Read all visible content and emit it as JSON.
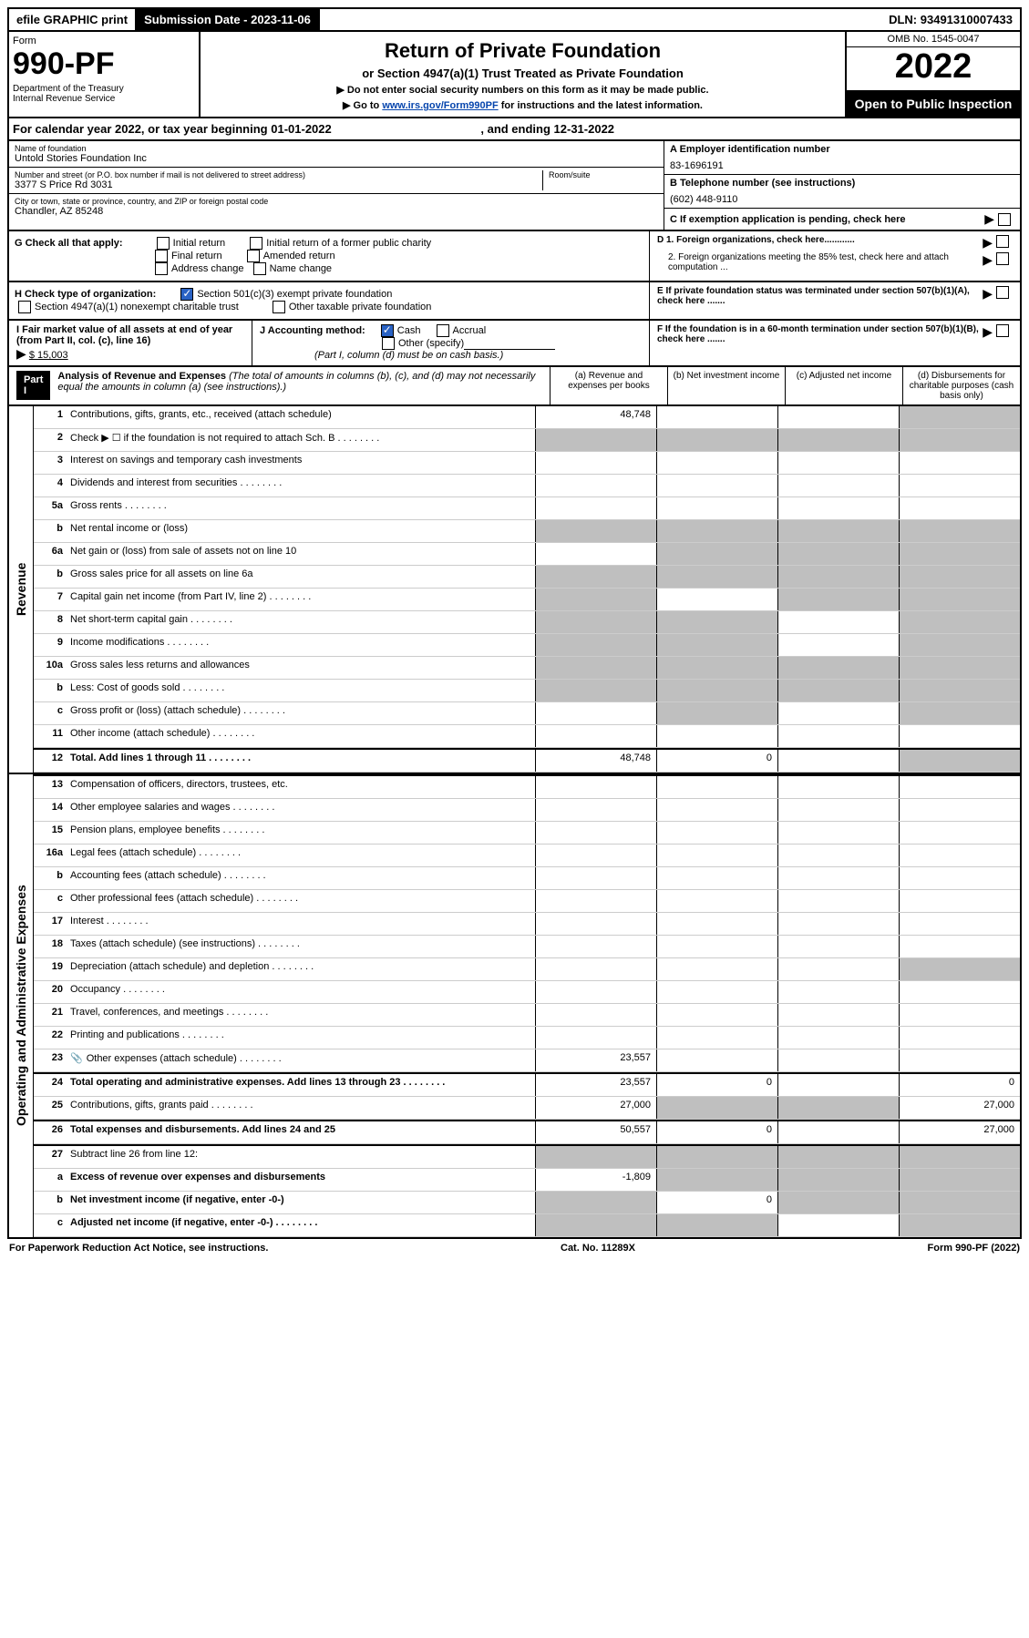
{
  "topbar": {
    "efile": "efile GRAPHIC print",
    "subdate_label": "Submission Date - ",
    "subdate": "2023-11-06",
    "dln_label": "DLN: ",
    "dln": "93491310007433"
  },
  "header": {
    "form_label": "Form",
    "form_num": "990-PF",
    "dept1": "Department of the Treasury",
    "dept2": "Internal Revenue Service",
    "title": "Return of Private Foundation",
    "subtitle": "or Section 4947(a)(1) Trust Treated as Private Foundation",
    "note1": "▶ Do not enter social security numbers on this form as it may be made public.",
    "note2_pre": "▶ Go to ",
    "note2_link": "www.irs.gov/Form990PF",
    "note2_post": " for instructions and the latest information.",
    "omb": "OMB No. 1545-0047",
    "year": "2022",
    "inspect": "Open to Public Inspection"
  },
  "calyear": {
    "text_pre": "For calendar year 2022, or tax year beginning ",
    "begin": "01-01-2022",
    "text_mid": ", and ending ",
    "end": "12-31-2022"
  },
  "info": {
    "name_label": "Name of foundation",
    "name": "Untold Stories Foundation Inc",
    "addr_label": "Number and street (or P.O. box number if mail is not delivered to street address)",
    "addr": "3377 S Price Rd 3031",
    "room_label": "Room/suite",
    "city_label": "City or town, state or province, country, and ZIP or foreign postal code",
    "city": "Chandler, AZ  85248",
    "ein_label": "A Employer identification number",
    "ein": "83-1696191",
    "phone_label": "B Telephone number (see instructions)",
    "phone": "(602) 448-9110",
    "c_label": "C If exemption application is pending, check here"
  },
  "boxG": {
    "label": "G Check all that apply:",
    "opts": [
      "Initial return",
      "Initial return of a former public charity",
      "Final return",
      "Amended return",
      "Address change",
      "Name change"
    ]
  },
  "boxH": {
    "label": "H Check type of organization:",
    "opt1": "Section 501(c)(3) exempt private foundation",
    "opt2": "Section 4947(a)(1) nonexempt charitable trust",
    "opt3": "Other taxable private foundation"
  },
  "boxI": {
    "label": "I Fair market value of all assets at end of year (from Part II, col. (c), line 16)",
    "arrow": "▶",
    "val": "$  15,003"
  },
  "boxJ": {
    "label": "J Accounting method:",
    "cash": "Cash",
    "accrual": "Accrual",
    "other": "Other (specify)",
    "note": "(Part I, column (d) must be on cash basis.)"
  },
  "rightD": {
    "d1": "D 1. Foreign organizations, check here............",
    "d2": "2. Foreign organizations meeting the 85% test, check here and attach computation ...",
    "e": "E  If private foundation status was terminated under section 507(b)(1)(A), check here .......",
    "f": "F  If the foundation is in a 60-month termination under section 507(b)(1)(B), check here ......."
  },
  "part1": {
    "label": "Part I",
    "title": "Analysis of Revenue and Expenses",
    "title_note": " (The total of amounts in columns (b), (c), and (d) may not necessarily equal the amounts in column (a) (see instructions).)",
    "cols": {
      "a": "(a) Revenue and expenses per books",
      "b": "(b) Net investment income",
      "c": "(c) Adjusted net income",
      "d": "(d) Disbursements for charitable purposes (cash basis only)"
    }
  },
  "vtabs": {
    "rev": "Revenue",
    "exp": "Operating and Administrative Expenses"
  },
  "rows": [
    {
      "n": "1",
      "d": "Contributions, gifts, grants, etc., received (attach schedule)",
      "a": "48,748",
      "grey": [
        "d"
      ]
    },
    {
      "n": "2",
      "d": "Check ▶ ☐ if the foundation is not required to attach Sch. B",
      "dots": true,
      "grey": [
        "a",
        "b",
        "c",
        "d"
      ]
    },
    {
      "n": "3",
      "d": "Interest on savings and temporary cash investments"
    },
    {
      "n": "4",
      "d": "Dividends and interest from securities",
      "dots": true
    },
    {
      "n": "5a",
      "d": "Gross rents",
      "dots": true
    },
    {
      "n": "b",
      "d": "Net rental income or (loss)",
      "grey": [
        "a",
        "b",
        "c",
        "d"
      ]
    },
    {
      "n": "6a",
      "d": "Net gain or (loss) from sale of assets not on line 10",
      "grey": [
        "b",
        "c",
        "d"
      ]
    },
    {
      "n": "b",
      "d": "Gross sales price for all assets on line 6a",
      "grey": [
        "a",
        "b",
        "c",
        "d"
      ]
    },
    {
      "n": "7",
      "d": "Capital gain net income (from Part IV, line 2)",
      "dots": true,
      "grey": [
        "a",
        "c",
        "d"
      ]
    },
    {
      "n": "8",
      "d": "Net short-term capital gain",
      "dots": true,
      "grey": [
        "a",
        "b",
        "d"
      ]
    },
    {
      "n": "9",
      "d": "Income modifications",
      "dots": true,
      "grey": [
        "a",
        "b",
        "d"
      ]
    },
    {
      "n": "10a",
      "d": "Gross sales less returns and allowances",
      "grey": [
        "a",
        "b",
        "c",
        "d"
      ]
    },
    {
      "n": "b",
      "d": "Less: Cost of goods sold",
      "dots": true,
      "grey": [
        "a",
        "b",
        "c",
        "d"
      ]
    },
    {
      "n": "c",
      "d": "Gross profit or (loss) (attach schedule)",
      "dots": true,
      "grey": [
        "b",
        "d"
      ]
    },
    {
      "n": "11",
      "d": "Other income (attach schedule)",
      "dots": true
    },
    {
      "n": "12",
      "d": "Total. Add lines 1 through 11",
      "dots": true,
      "bold": true,
      "a": "48,748",
      "b": "0",
      "grey": [
        "d"
      ],
      "sep": true
    }
  ],
  "exprows": [
    {
      "n": "13",
      "d": "Compensation of officers, directors, trustees, etc.",
      "sep": true
    },
    {
      "n": "14",
      "d": "Other employee salaries and wages",
      "dots": true
    },
    {
      "n": "15",
      "d": "Pension plans, employee benefits",
      "dots": true
    },
    {
      "n": "16a",
      "d": "Legal fees (attach schedule)",
      "dots": true
    },
    {
      "n": "b",
      "d": "Accounting fees (attach schedule)",
      "dots": true
    },
    {
      "n": "c",
      "d": "Other professional fees (attach schedule)",
      "dots": true
    },
    {
      "n": "17",
      "d": "Interest",
      "dots": true
    },
    {
      "n": "18",
      "d": "Taxes (attach schedule) (see instructions)",
      "dots": true
    },
    {
      "n": "19",
      "d": "Depreciation (attach schedule) and depletion",
      "dots": true,
      "grey": [
        "d"
      ]
    },
    {
      "n": "20",
      "d": "Occupancy",
      "dots": true
    },
    {
      "n": "21",
      "d": "Travel, conferences, and meetings",
      "dots": true
    },
    {
      "n": "22",
      "d": "Printing and publications",
      "dots": true
    },
    {
      "n": "23",
      "d": "Other expenses (attach schedule)",
      "dots": true,
      "a": "23,557",
      "icon": true
    },
    {
      "n": "24",
      "d": "Total operating and administrative expenses. Add lines 13 through 23",
      "dots": true,
      "bold": true,
      "a": "23,557",
      "b": "0",
      "dv": "0",
      "sep": true
    },
    {
      "n": "25",
      "d": "Contributions, gifts, grants paid",
      "dots": true,
      "a": "27,000",
      "dv": "27,000",
      "grey": [
        "b",
        "c"
      ]
    },
    {
      "n": "26",
      "d": "Total expenses and disbursements. Add lines 24 and 25",
      "bold": true,
      "a": "50,557",
      "b": "0",
      "dv": "27,000",
      "sep": true
    },
    {
      "n": "27",
      "d": "Subtract line 26 from line 12:",
      "grey": [
        "a",
        "b",
        "c",
        "d"
      ],
      "sep": true
    },
    {
      "n": "a",
      "d": "Excess of revenue over expenses and disbursements",
      "bold": true,
      "a": "-1,809",
      "grey": [
        "b",
        "c",
        "d"
      ]
    },
    {
      "n": "b",
      "d": "Net investment income (if negative, enter -0-)",
      "bold": true,
      "b": "0",
      "grey": [
        "a",
        "c",
        "d"
      ]
    },
    {
      "n": "c",
      "d": "Adjusted net income (if negative, enter -0-)",
      "bold": true,
      "dots": true,
      "grey": [
        "a",
        "b",
        "d"
      ]
    }
  ],
  "footer": {
    "left": "For Paperwork Reduction Act Notice, see instructions.",
    "mid": "Cat. No. 11289X",
    "right": "Form 990-PF (2022)"
  }
}
